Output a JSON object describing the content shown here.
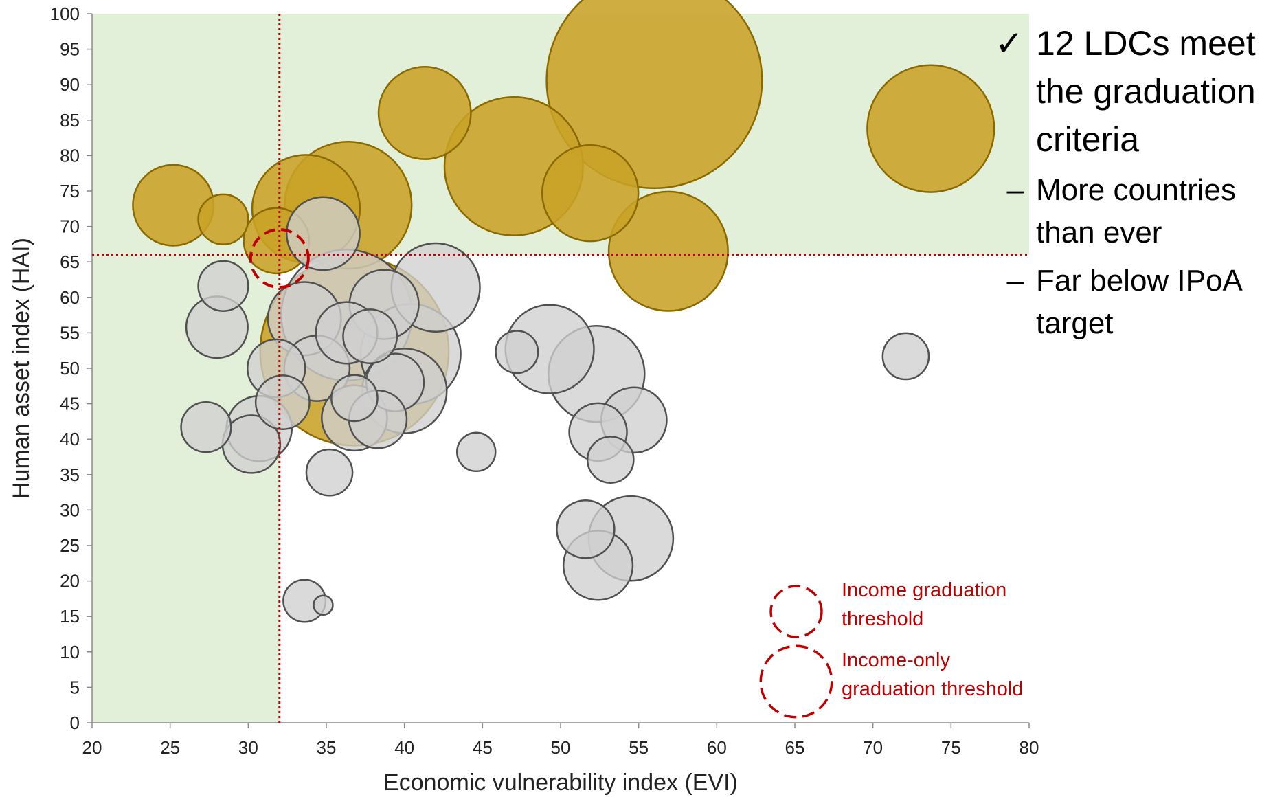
{
  "chart_data": {
    "type": "scatter",
    "subtype": "bubble",
    "xlabel": "Economic vulnerability index (EVI)",
    "ylabel": "Human asset index (HAI)",
    "xlim": [
      20,
      80
    ],
    "ylim": [
      0,
      100
    ],
    "xticks": [
      20,
      25,
      30,
      35,
      40,
      45,
      50,
      55,
      60,
      65,
      70,
      75,
      80
    ],
    "yticks": [
      0,
      5,
      10,
      15,
      20,
      25,
      30,
      35,
      40,
      45,
      50,
      55,
      60,
      65,
      70,
      75,
      80,
      85,
      90,
      95,
      100
    ],
    "grid": false,
    "thresholds": {
      "evi": 32,
      "hai": 66
    },
    "highlight_region_color": "#e2f0d9",
    "threshold_color": "#c00000",
    "colors": {
      "meets_criteria": "#c9a227",
      "others": "#d0d0d0"
    },
    "series": [
      {
        "group": "meets_criteria",
        "points": [
          {
            "x": 25.2,
            "y": 73,
            "size": 2.1
          },
          {
            "x": 28.4,
            "y": 71,
            "size": 1.3
          },
          {
            "x": 31.8,
            "y": 68,
            "size": 1.7
          },
          {
            "x": 33.7,
            "y": 72.5,
            "size": 2.8
          },
          {
            "x": 36.4,
            "y": 73,
            "size": 3.3
          },
          {
            "x": 41.3,
            "y": 86,
            "size": 2.4
          },
          {
            "x": 47.0,
            "y": 78.5,
            "size": 3.6
          },
          {
            "x": 51.9,
            "y": 74.7,
            "size": 2.5
          },
          {
            "x": 56.0,
            "y": 90.6,
            "size": 5.6
          },
          {
            "x": 56.9,
            "y": 66.5,
            "size": 3.1
          },
          {
            "x": 73.7,
            "y": 83.8,
            "size": 3.3
          },
          {
            "x": 36.8,
            "y": 52.4,
            "size": 4.9
          }
        ]
      },
      {
        "group": "others",
        "points": [
          {
            "x": 28.4,
            "y": 61.6,
            "size": 1.3
          },
          {
            "x": 28.0,
            "y": 55.8,
            "size": 1.6
          },
          {
            "x": 33.6,
            "y": 57.0,
            "size": 1.9
          },
          {
            "x": 34.8,
            "y": 69.0,
            "size": 1.9
          },
          {
            "x": 31.8,
            "y": 50.0,
            "size": 1.5
          },
          {
            "x": 34.4,
            "y": 50.0,
            "size": 1.7
          },
          {
            "x": 32.2,
            "y": 45.2,
            "size": 1.4
          },
          {
            "x": 27.3,
            "y": 41.7,
            "size": 1.3
          },
          {
            "x": 30.7,
            "y": 41.5,
            "size": 1.7
          },
          {
            "x": 30.2,
            "y": 39.3,
            "size": 1.5
          },
          {
            "x": 36.3,
            "y": 57.5,
            "size": 3.4
          },
          {
            "x": 38.7,
            "y": 59.0,
            "size": 1.8
          },
          {
            "x": 36.3,
            "y": 55.0,
            "size": 1.6
          },
          {
            "x": 37.8,
            "y": 54.5,
            "size": 1.4
          },
          {
            "x": 40.4,
            "y": 52.0,
            "size": 2.6
          },
          {
            "x": 40.0,
            "y": 46.8,
            "size": 2.2
          },
          {
            "x": 39.4,
            "y": 48.0,
            "size": 1.5
          },
          {
            "x": 36.8,
            "y": 45.8,
            "size": 1.2
          },
          {
            "x": 36.8,
            "y": 43.0,
            "size": 1.7
          },
          {
            "x": 38.3,
            "y": 42.8,
            "size": 1.5
          },
          {
            "x": 42.0,
            "y": 61.4,
            "size": 2.3
          },
          {
            "x": 35.2,
            "y": 35.3,
            "size": 1.2
          },
          {
            "x": 44.6,
            "y": 38.2,
            "size": 1.0
          },
          {
            "x": 47.2,
            "y": 52.3,
            "size": 1.1
          },
          {
            "x": 49.3,
            "y": 52.7,
            "size": 2.3
          },
          {
            "x": 52.3,
            "y": 49.2,
            "size": 2.5
          },
          {
            "x": 52.4,
            "y": 41.0,
            "size": 1.5
          },
          {
            "x": 54.7,
            "y": 42.7,
            "size": 1.7
          },
          {
            "x": 53.2,
            "y": 37.1,
            "size": 1.2
          },
          {
            "x": 51.6,
            "y": 27.3,
            "size": 1.5
          },
          {
            "x": 54.5,
            "y": 26.0,
            "size": 2.2
          },
          {
            "x": 52.4,
            "y": 22.2,
            "size": 1.8
          },
          {
            "x": 72.1,
            "y": 51.7,
            "size": 1.2
          },
          {
            "x": 33.6,
            "y": 17.2,
            "size": 1.1
          },
          {
            "x": 34.8,
            "y": 16.6,
            "size": 0.5
          }
        ]
      }
    ],
    "income_threshold_circle": {
      "x": 32.0,
      "y": 65.5,
      "size": 2.0
    },
    "legend": [
      {
        "label_lines": [
          "Income graduation",
          "threshold"
        ],
        "size": 2.0
      },
      {
        "label_lines": [
          "Income-only",
          "graduation threshold"
        ],
        "size": 2.8
      }
    ]
  },
  "notes": {
    "main": {
      "bullet": "✓",
      "lines": [
        "12 LDCs meet",
        "the graduation",
        "criteria"
      ]
    },
    "subs": [
      {
        "bullet": "–",
        "lines": [
          "More countries",
          "than ever"
        ]
      },
      {
        "bullet": "–",
        "lines": [
          "Far below IPoA",
          "target"
        ]
      }
    ]
  }
}
